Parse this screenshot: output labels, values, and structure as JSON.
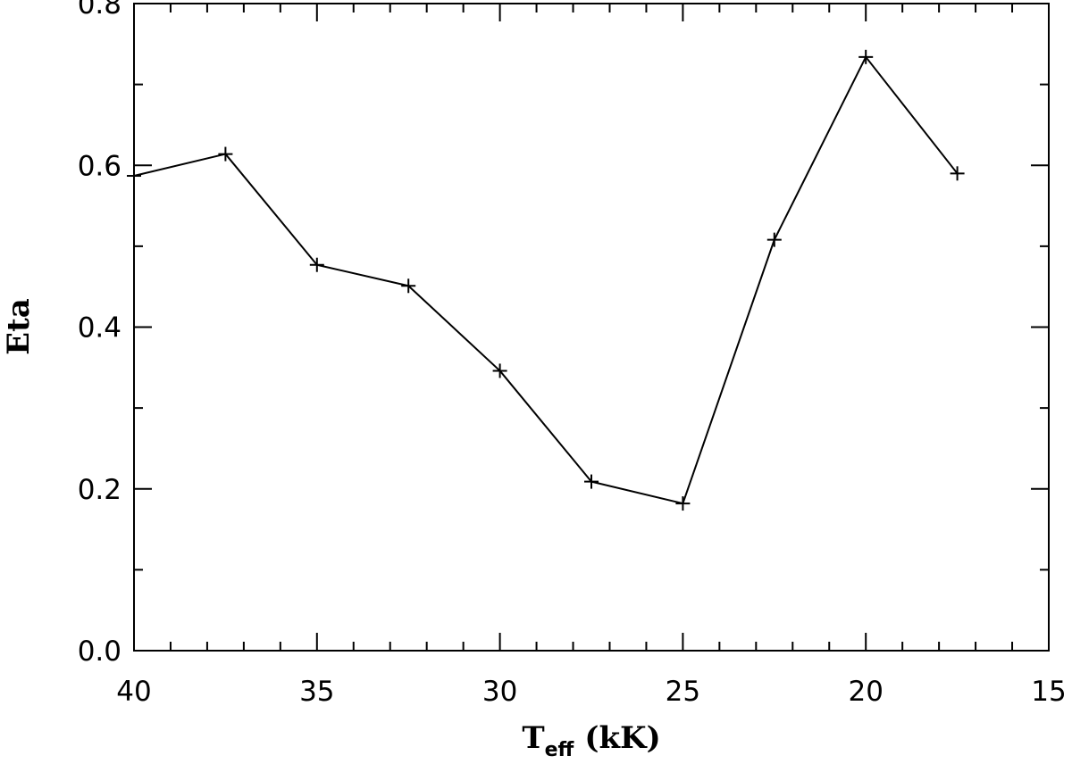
{
  "chart_data": {
    "type": "line",
    "xlabel": "T",
    "xlabel_subscript": "eff",
    "xlabel_unit": "(kK)",
    "ylabel": "Eta",
    "xlim": [
      40,
      15
    ],
    "ylim": [
      0,
      0.8
    ],
    "x_major_ticks": [
      40,
      35,
      30,
      25,
      20,
      15
    ],
    "x_tick_labels": [
      "40",
      "35",
      "30",
      "25",
      "20",
      "15"
    ],
    "x_minor_step": 1,
    "y_major_ticks": [
      0.0,
      0.2,
      0.4,
      0.6,
      0.8
    ],
    "y_tick_labels": [
      "0.0",
      "0.2",
      "0.4",
      "0.6",
      "0.8"
    ],
    "y_minor_step": 0.1,
    "grid": false,
    "marker": "plus",
    "x": [
      40.0,
      37.5,
      35.0,
      32.5,
      30.0,
      27.5,
      25.0,
      22.5,
      20.0,
      17.5
    ],
    "y": [
      0.587,
      0.614,
      0.477,
      0.451,
      0.346,
      0.209,
      0.182,
      0.508,
      0.734,
      0.59
    ]
  }
}
